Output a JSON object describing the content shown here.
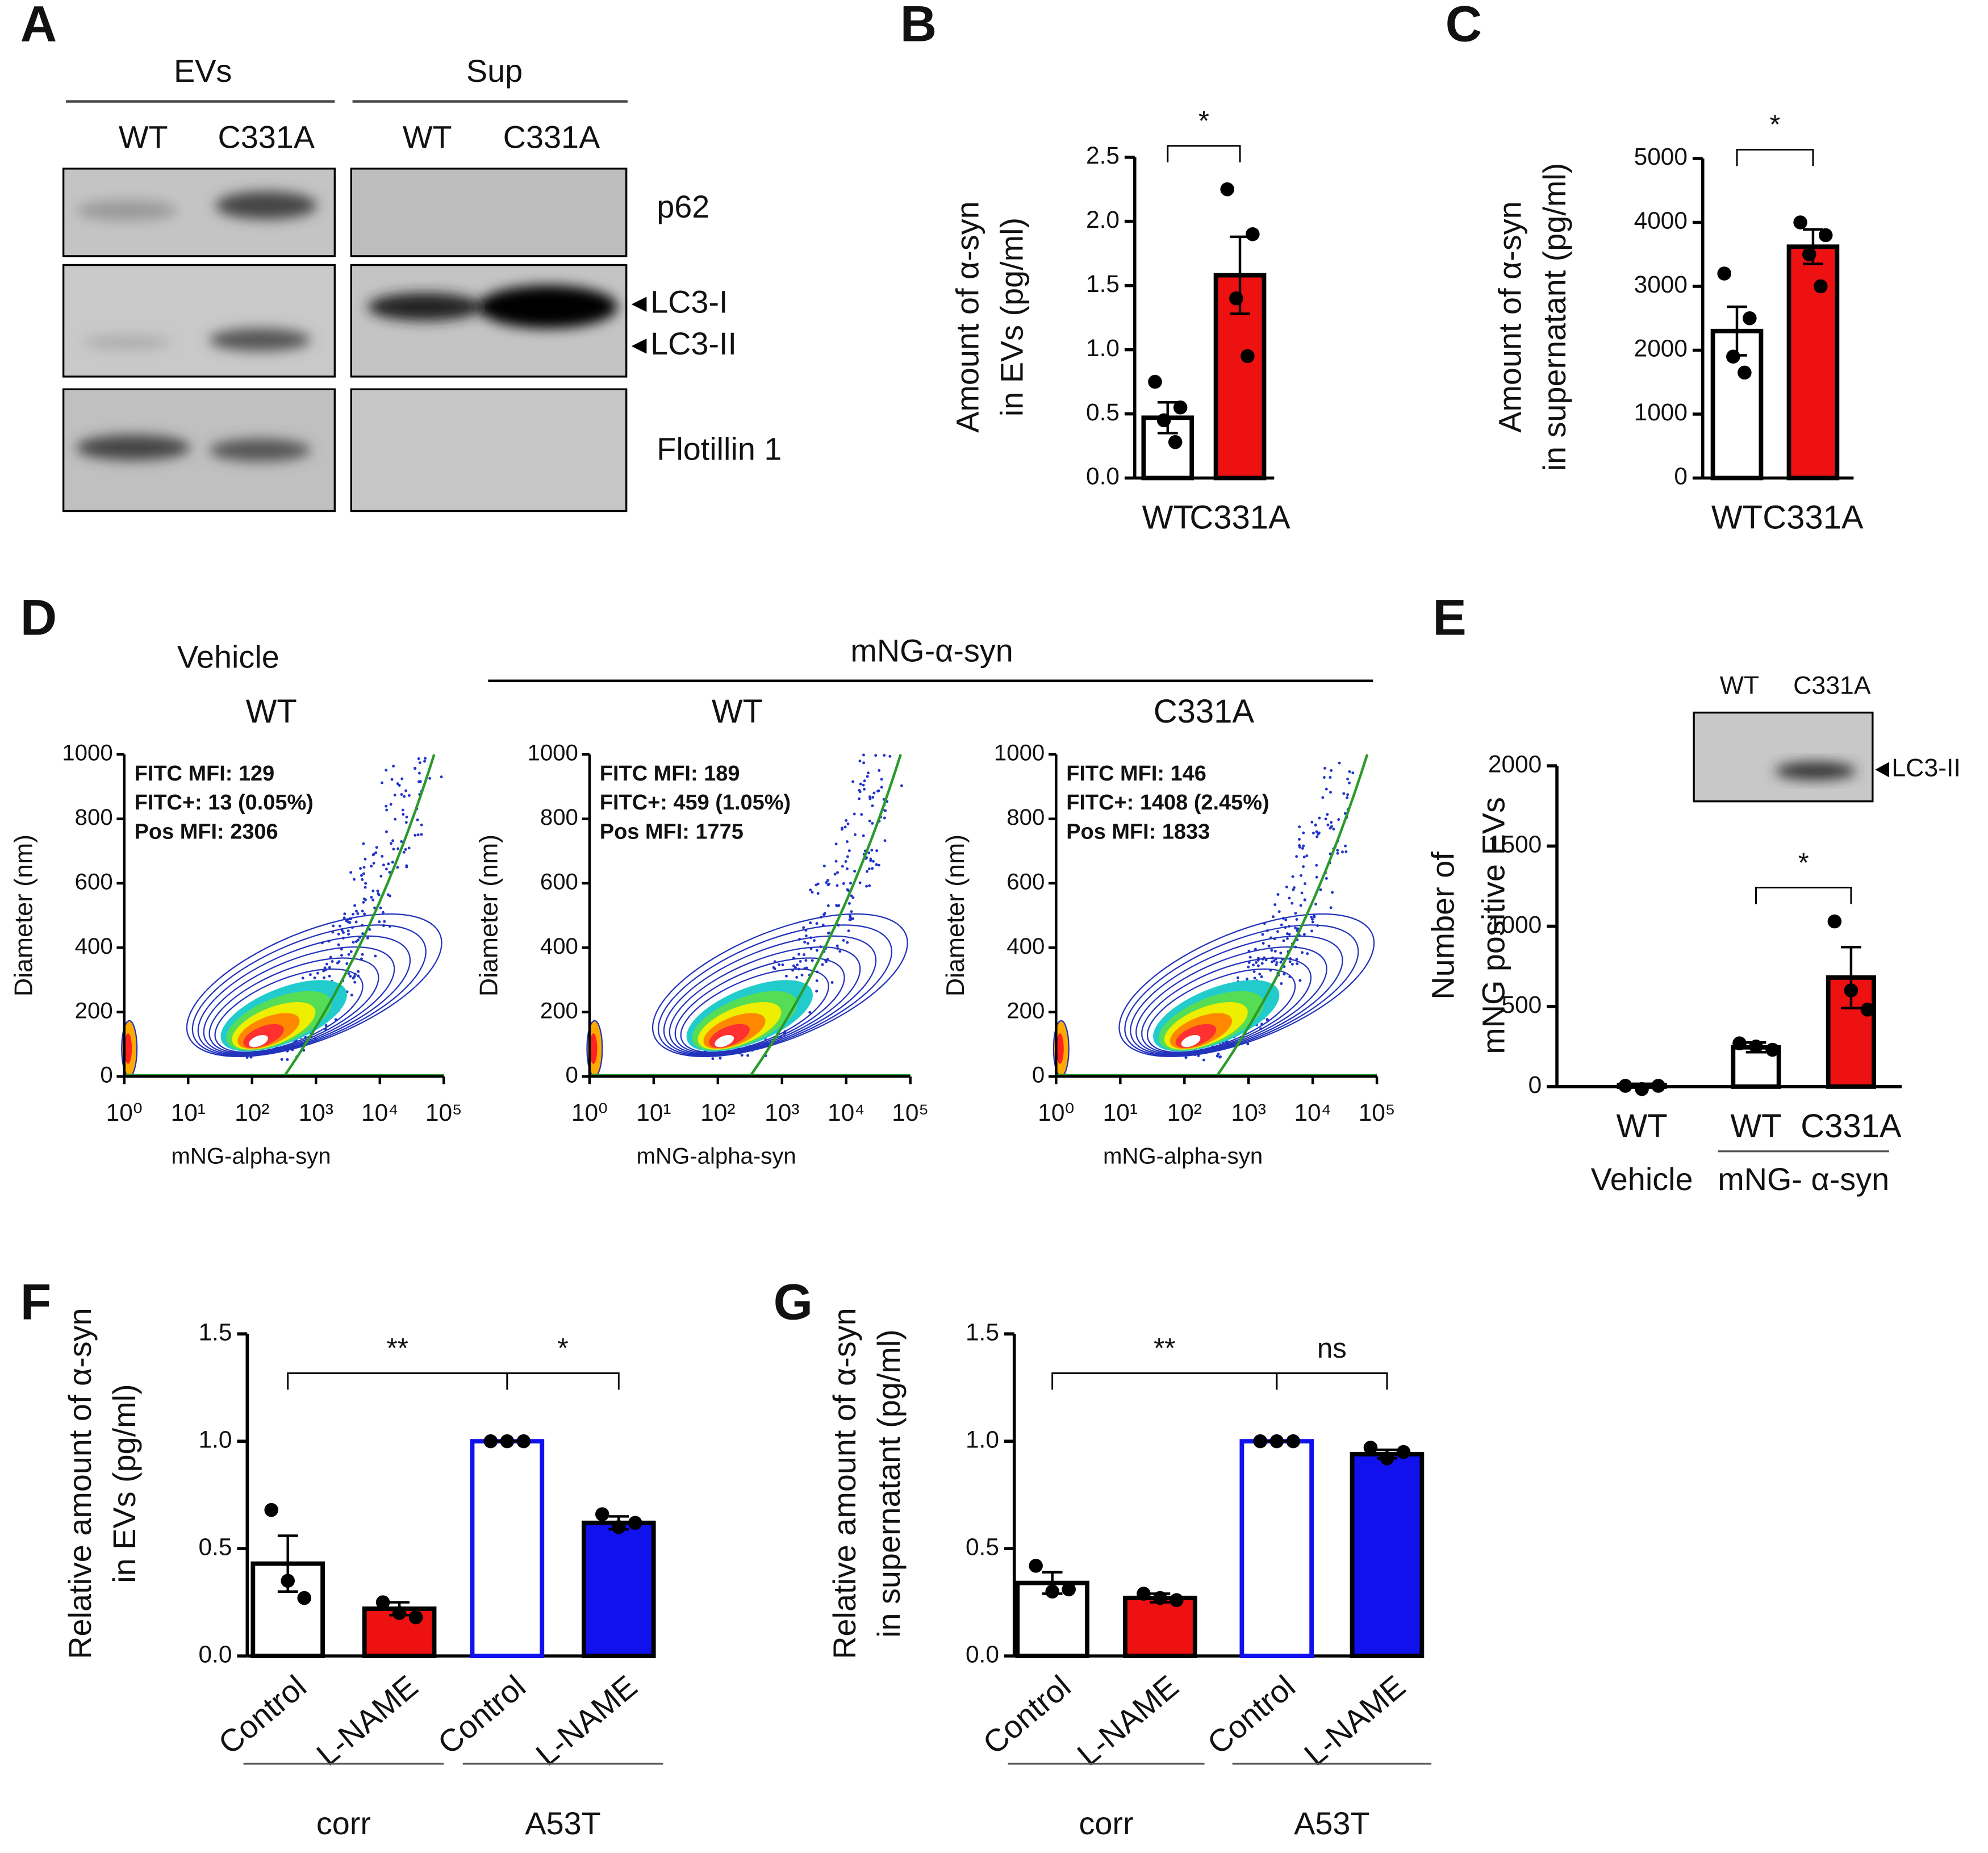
{
  "blot": {
    "panel": "A",
    "groups": [
      "EVs",
      "Sup"
    ],
    "lanes": [
      "WT",
      "C331A",
      "WT",
      "C331A"
    ],
    "rows": [
      "p62",
      "LC3-I",
      "LC3-II",
      "Flotillin 1"
    ]
  },
  "panel_D": {
    "label": "D",
    "groups": [
      "Vehicle",
      "mNG-α-syn"
    ]
  },
  "chart_data": [
    {
      "type": "bar",
      "panel": "B",
      "y_label": [
        "Amount of α-syn",
        "in EVs  (pg/ml)"
      ],
      "categories": [
        "WT",
        "C331A"
      ],
      "values": [
        0.47,
        1.58
      ],
      "errors": [
        0.12,
        0.3
      ],
      "points": [
        [
          0.75,
          0.55,
          0.45,
          0.28
        ],
        [
          2.25,
          1.9,
          1.4,
          0.95
        ]
      ],
      "colors": [
        "#ffffff",
        "#ee1111"
      ],
      "edge_colors": [
        "#000000",
        "#000000"
      ],
      "ylim": [
        0,
        2.5
      ],
      "yticks": [
        {
          "value": 0,
          "label": "0.0"
        },
        {
          "value": 0.5,
          "label": "0.5"
        },
        {
          "value": 1,
          "label": "1.0"
        },
        {
          "value": 1.5,
          "label": "1.5"
        },
        {
          "value": 2,
          "label": "2.0"
        },
        {
          "value": 2.5,
          "label": "2.5"
        }
      ],
      "significance": [
        {
          "label": "*",
          "between": [
            0,
            1
          ]
        }
      ]
    },
    {
      "type": "bar",
      "panel": "C",
      "y_label": [
        "Amount of α-syn",
        "in supernatant (pg/ml)"
      ],
      "categories": [
        "WT",
        "C331A"
      ],
      "values": [
        2300,
        3620
      ],
      "errors": [
        380,
        270
      ],
      "points": [
        [
          3200,
          2500,
          1900,
          1650
        ],
        [
          4000,
          3800,
          3500,
          3000
        ]
      ],
      "colors": [
        "#ffffff",
        "#ee1111"
      ],
      "edge_colors": [
        "#000000",
        "#000000"
      ],
      "ylim": [
        0,
        5000
      ],
      "yticks": [
        0,
        1000,
        2000,
        3000,
        4000,
        5000
      ],
      "significance": [
        {
          "label": "*",
          "between": [
            0,
            1
          ]
        }
      ]
    },
    {
      "type": "density",
      "title": "WT",
      "x_label": "mNG-alpha-syn",
      "y_label": "Diameter (nm)",
      "log_x": true,
      "xlim": [
        1,
        100000
      ],
      "xticks": [
        {
          "value": 1,
          "label": "10⁰"
        },
        {
          "value": 10,
          "label": "10¹"
        },
        {
          "value": 100,
          "label": "10²"
        },
        {
          "value": 1000,
          "label": "10³"
        },
        {
          "value": 10000,
          "label": "10⁴"
        },
        {
          "value": 100000,
          "label": "10⁵"
        }
      ],
      "ylim": [
        0,
        1000
      ],
      "yticks": [
        0,
        200,
        400,
        600,
        800,
        1000
      ],
      "annotations": [
        "FITC MFI: 129",
        "FITC+: 13 (0.05%)",
        "Pos MFI: 2306"
      ],
      "annotation_color": "#1a8c1a"
    },
    {
      "type": "density",
      "title": "WT",
      "x_label": "mNG-alpha-syn",
      "y_label": "Diameter (nm)",
      "log_x": true,
      "xlim": [
        1,
        100000
      ],
      "xticks": [
        {
          "value": 1,
          "label": "10⁰"
        },
        {
          "value": 10,
          "label": "10¹"
        },
        {
          "value": 100,
          "label": "10²"
        },
        {
          "value": 1000,
          "label": "10³"
        },
        {
          "value": 10000,
          "label": "10⁴"
        },
        {
          "value": 100000,
          "label": "10⁵"
        }
      ],
      "ylim": [
        0,
        1000
      ],
      "yticks": [
        0,
        200,
        400,
        600,
        800,
        1000
      ],
      "annotations": [
        "FITC MFI: 189",
        "FITC+: 459 (1.05%)",
        "Pos MFI: 1775"
      ],
      "annotation_color": "#1a8c1a"
    },
    {
      "type": "density",
      "title": "C331A",
      "x_label": "mNG-alpha-syn",
      "y_label": "Diameter (nm)",
      "log_x": true,
      "xlim": [
        1,
        100000
      ],
      "xticks": [
        {
          "value": 1,
          "label": "10⁰"
        },
        {
          "value": 10,
          "label": "10¹"
        },
        {
          "value": 100,
          "label": "10²"
        },
        {
          "value": 1000,
          "label": "10³"
        },
        {
          "value": 10000,
          "label": "10⁴"
        },
        {
          "value": 100000,
          "label": "10⁵"
        }
      ],
      "ylim": [
        0,
        1000
      ],
      "yticks": [
        0,
        200,
        400,
        600,
        800,
        1000
      ],
      "annotations": [
        "FITC MFI: 146",
        "FITC+: 1408 (2.45%)",
        "Pos MFI: 1833"
      ],
      "annotation_color": "#1a8c1a"
    },
    {
      "type": "bar",
      "panel": "E",
      "y_label": [
        "Number of",
        "mNG positive EVs"
      ],
      "categories": [
        "WT",
        "WT",
        "C331A"
      ],
      "values": [
        10,
        245,
        680
      ],
      "errors": [
        8,
        30,
        190
      ],
      "points": [
        [
          5,
          -15,
          5
        ],
        [
          270,
          250,
          230
        ],
        [
          1030,
          600,
          480
        ]
      ],
      "colors": [
        "#ffffff",
        "#ffffff",
        "#ee1111"
      ],
      "edge_colors": [
        "#000000",
        "#000000",
        "#000000"
      ],
      "ylim": [
        0,
        2000
      ],
      "yticks": [
        0,
        500,
        1000,
        1500,
        2000
      ],
      "significance": [
        {
          "label": "*",
          "between": [
            1,
            2
          ]
        }
      ],
      "groups": [
        {
          "label": "Vehicle",
          "span": [
            0,
            0
          ]
        },
        {
          "label": "mNG- α-syn",
          "span": [
            1,
            2
          ]
        }
      ],
      "inset": {
        "lanes": [
          "WT",
          "C331A"
        ],
        "label": "LC3-II"
      }
    },
    {
      "type": "bar",
      "panel": "F",
      "y_label": [
        "Relative amount of α-syn",
        "in EVs  (pg/ml)"
      ],
      "categories": [
        "Control",
        "L-NAME",
        "Control",
        "L-NAME"
      ],
      "values": [
        0.43,
        0.22,
        1.0,
        0.62
      ],
      "errors": [
        0.13,
        0.03,
        0,
        0.03
      ],
      "points": [
        [
          0.68,
          0.35,
          0.27
        ],
        [
          0.25,
          0.2,
          0.18
        ],
        [
          1,
          1,
          1
        ],
        [
          0.66,
          0.6,
          0.62
        ]
      ],
      "colors": [
        "#ffffff",
        "#ee1111",
        "#ffffff",
        "#1111ee"
      ],
      "edge_colors": [
        "#000000",
        "#000000",
        "#1111ee",
        "#000000"
      ],
      "ylim": [
        0,
        1.5
      ],
      "yticks": [
        {
          "value": 0,
          "label": "0.0"
        },
        {
          "value": 0.5,
          "label": "0.5"
        },
        {
          "value": 1,
          "label": "1.0"
        },
        {
          "value": 1.5,
          "label": "1.5"
        }
      ],
      "significance": [
        {
          "label": "**",
          "between": [
            0,
            2
          ]
        },
        {
          "label": "*",
          "between": [
            2,
            3
          ]
        }
      ],
      "groups": [
        {
          "label": "corr",
          "span": [
            0,
            1
          ]
        },
        {
          "label": "A53T",
          "span": [
            2,
            3
          ]
        }
      ]
    },
    {
      "type": "bar",
      "panel": "G",
      "y_label": [
        "Relative amount of α-syn",
        "in supernatant (pg/ml)"
      ],
      "categories": [
        "Control",
        "L-NAME",
        "Control",
        "L-NAME"
      ],
      "values": [
        0.34,
        0.27,
        1.0,
        0.94
      ],
      "errors": [
        0.05,
        0.02,
        0,
        0.02
      ],
      "points": [
        [
          0.42,
          0.3,
          0.31
        ],
        [
          0.29,
          0.27,
          0.26
        ],
        [
          1,
          1,
          1
        ],
        [
          0.97,
          0.92,
          0.95
        ]
      ],
      "colors": [
        "#ffffff",
        "#ee1111",
        "#ffffff",
        "#1111ee"
      ],
      "edge_colors": [
        "#000000",
        "#000000",
        "#1111ee",
        "#000000"
      ],
      "ylim": [
        0,
        1.5
      ],
      "yticks": [
        {
          "value": 0,
          "label": "0.0"
        },
        {
          "value": 0.5,
          "label": "0.5"
        },
        {
          "value": 1,
          "label": "1.0"
        },
        {
          "value": 1.5,
          "label": "1.5"
        }
      ],
      "significance": [
        {
          "label": "**",
          "between": [
            0,
            2
          ]
        },
        {
          "label": "ns",
          "between": [
            2,
            3
          ]
        }
      ],
      "groups": [
        {
          "label": "corr",
          "span": [
            0,
            1
          ]
        },
        {
          "label": "A53T",
          "span": [
            2,
            3
          ]
        }
      ]
    }
  ]
}
